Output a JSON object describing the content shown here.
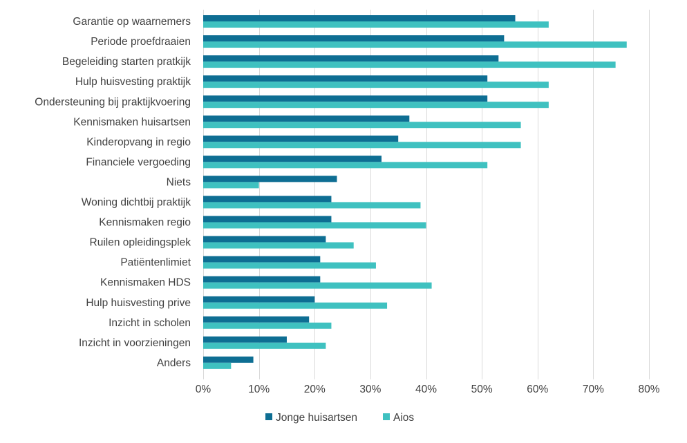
{
  "chart_data": {
    "type": "bar",
    "orientation": "horizontal",
    "title": "",
    "xlabel": "",
    "ylabel": "",
    "xlim": [
      0,
      80
    ],
    "x_ticks": [
      "0%",
      "10%",
      "20%",
      "30%",
      "40%",
      "50%",
      "60%",
      "70%",
      "80%"
    ],
    "x_tick_values": [
      0,
      10,
      20,
      30,
      40,
      50,
      60,
      70,
      80
    ],
    "grid": true,
    "legend_position": "bottom",
    "categories": [
      "Garantie op waarnemers",
      "Periode proefdraaien",
      "Begeleiding starten pratkijk",
      "Hulp huisvesting praktijk",
      "Ondersteuning bij praktijkvoering",
      "Kennismaken huisartsen",
      "Kinderopvang in regio",
      "Financiele vergoeding",
      "Niets",
      "Woning dichtbij praktijk",
      "Kennismaken regio",
      "Ruilen opleidingsplek",
      "Patiëntenlimiet",
      "Kennismaken HDS",
      "Hulp huisvesting prive",
      "Inzicht in scholen",
      "Inzicht in voorzieningen",
      "Anders"
    ],
    "series": [
      {
        "name": "Jonge huisartsen",
        "color": "#0E6E93",
        "values": [
          56,
          54,
          53,
          51,
          51,
          37,
          35,
          32,
          24,
          23,
          23,
          22,
          21,
          21,
          20,
          19,
          15,
          9
        ]
      },
      {
        "name": "Aios",
        "color": "#3FC1C0",
        "values": [
          62,
          76,
          74,
          62,
          62,
          57,
          57,
          51,
          10,
          39,
          40,
          27,
          31,
          41,
          33,
          23,
          22,
          5
        ]
      }
    ]
  }
}
